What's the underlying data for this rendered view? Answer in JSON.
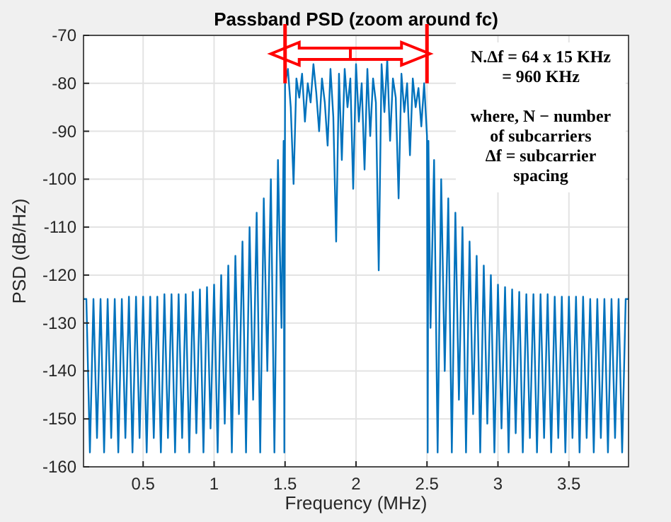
{
  "chart_data": {
    "type": "line",
    "title": "Passband PSD (zoom around fc)",
    "xlabel": "Frequency (MHz)",
    "ylabel": "PSD (dB/Hz)",
    "x": [
      0.08,
      0.1,
      0.125,
      0.15,
      0.175,
      0.2,
      0.225,
      0.25,
      0.275,
      0.3,
      0.325,
      0.35,
      0.375,
      0.4,
      0.425,
      0.45,
      0.475,
      0.5,
      0.525,
      0.55,
      0.575,
      0.6,
      0.625,
      0.65,
      0.675,
      0.7,
      0.725,
      0.75,
      0.775,
      0.8,
      0.825,
      0.85,
      0.875,
      0.9,
      0.925,
      0.95,
      0.975,
      1.0,
      1.025,
      1.05,
      1.075,
      1.1,
      1.125,
      1.15,
      1.175,
      1.2,
      1.225,
      1.25,
      1.275,
      1.3,
      1.325,
      1.35,
      1.375,
      1.4,
      1.425,
      1.45,
      1.475,
      1.49,
      1.495,
      1.5,
      1.52,
      1.54,
      1.56,
      1.58,
      1.6,
      1.62,
      1.64,
      1.66,
      1.68,
      1.7,
      1.72,
      1.74,
      1.76,
      1.78,
      1.8,
      1.82,
      1.84,
      1.86,
      1.88,
      1.9,
      1.92,
      1.94,
      1.96,
      1.98,
      2.0,
      2.02,
      2.04,
      2.06,
      2.08,
      2.1,
      2.12,
      2.14,
      2.16,
      2.18,
      2.2,
      2.22,
      2.24,
      2.26,
      2.28,
      2.3,
      2.32,
      2.34,
      2.36,
      2.38,
      2.4,
      2.42,
      2.44,
      2.46,
      2.48,
      2.5,
      2.505,
      2.51,
      2.525,
      2.55,
      2.575,
      2.6,
      2.625,
      2.65,
      2.675,
      2.7,
      2.725,
      2.75,
      2.775,
      2.8,
      2.825,
      2.85,
      2.875,
      2.9,
      2.925,
      2.95,
      2.975,
      3.0,
      3.025,
      3.05,
      3.075,
      3.1,
      3.125,
      3.15,
      3.175,
      3.2,
      3.225,
      3.25,
      3.275,
      3.3,
      3.325,
      3.35,
      3.375,
      3.4,
      3.425,
      3.45,
      3.475,
      3.5,
      3.525,
      3.55,
      3.575,
      3.6,
      3.625,
      3.65,
      3.675,
      3.7,
      3.725,
      3.75,
      3.775,
      3.8,
      3.825,
      3.85,
      3.875,
      3.9,
      3.92
    ],
    "series": [
      {
        "color": "#0072bd",
        "values": [
          -125,
          -125,
          -157,
          -125,
          -154,
          -125,
          -157,
          -125,
          -154,
          -125,
          -157,
          -125,
          -154,
          -124.5,
          -157,
          -124.5,
          -154,
          -124.5,
          -157,
          -124.5,
          -154,
          -124.5,
          -157,
          -124,
          -154,
          -124,
          -157,
          -124,
          -154,
          -124,
          -157,
          -123.5,
          -153,
          -123,
          -157,
          -122.5,
          -152,
          -122,
          -157,
          -120,
          -151,
          -118,
          -157,
          -116,
          -149,
          -113,
          -157,
          -110,
          -146,
          -107,
          -157,
          -104,
          -140,
          -100,
          -157,
          -96,
          -131,
          -92,
          -157,
          -80,
          -77,
          -85,
          -101,
          -79,
          -83,
          -78,
          -88,
          -80,
          -84,
          -76,
          -82,
          -90,
          -79,
          -84,
          -93,
          -77,
          -87,
          -113,
          -78,
          -96,
          -77,
          -85,
          -79,
          -102,
          -76,
          -88,
          -80,
          -98,
          -77,
          -91,
          -79,
          -84,
          -119,
          -76,
          -86,
          -75,
          -92,
          -79,
          -83,
          -104,
          -78,
          -86,
          -80,
          -95,
          -79,
          -85,
          -81,
          -89,
          -80,
          -91,
          -157,
          -92,
          -131,
          -96,
          -157,
          -100,
          -140,
          -104,
          -157,
          -107,
          -146,
          -110,
          -157,
          -113,
          -149,
          -116,
          -157,
          -118,
          -151,
          -120,
          -157,
          -122,
          -152,
          -122.5,
          -157,
          -123,
          -153,
          -123.5,
          -157,
          -124,
          -154,
          -124,
          -157,
          -124,
          -154,
          -124,
          -157,
          -124.5,
          -154,
          -124.5,
          -157,
          -124.5,
          -154,
          -124.5,
          -157,
          -124.5,
          -154,
          -125,
          -157,
          -125,
          -154,
          -125,
          -157,
          -125,
          -154,
          -125,
          -157,
          -125,
          -125
        ]
      }
    ],
    "xlim": [
      0.08,
      3.92
    ],
    "ylim": [
      -160,
      -70
    ],
    "xticks": [
      0.5,
      1,
      1.5,
      2,
      2.5,
      3,
      3.5
    ],
    "yticks": [
      -70,
      -80,
      -90,
      -100,
      -110,
      -120,
      -130,
      -140,
      -150,
      -160
    ],
    "grid": true,
    "ref_lines": [
      {
        "axis": "x",
        "value": 1.5,
        "color": "#ff0000"
      },
      {
        "axis": "x",
        "value": 2.5,
        "color": "#ff0000"
      }
    ],
    "annotations": [
      "N.Δf = 64 x 15 KHz\n= 960 KHz\n\nwhere, N − number\nof subcarriers\nΔf = subcarrier\nspacing"
    ]
  }
}
